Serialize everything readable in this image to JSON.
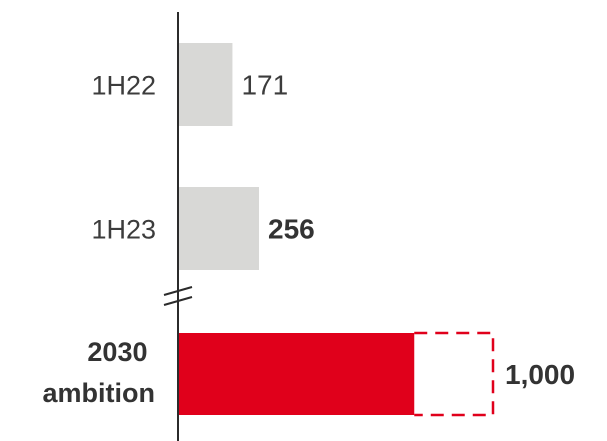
{
  "chart_data": {
    "type": "bar",
    "orientation": "horizontal",
    "categories": [
      "1H22",
      "1H23",
      "2030 ambition"
    ],
    "values": [
      171,
      256,
      1000
    ],
    "value_labels": [
      "171",
      "256",
      "1,000"
    ],
    "emphasis": [
      false,
      true,
      true
    ],
    "axis_break_before_index": 2,
    "target_bar": {
      "index": 2,
      "solid_portion_value": 750,
      "dashed_outline_to_value": 1000
    },
    "colors": {
      "historical_bar": "#d8d8d6",
      "ambition_bar": "#e0001b",
      "axis": "#2b2b2b",
      "text": "#3c3c3c"
    },
    "title": "",
    "xlabel": "",
    "ylabel": "",
    "grid": false,
    "legend": "none"
  }
}
